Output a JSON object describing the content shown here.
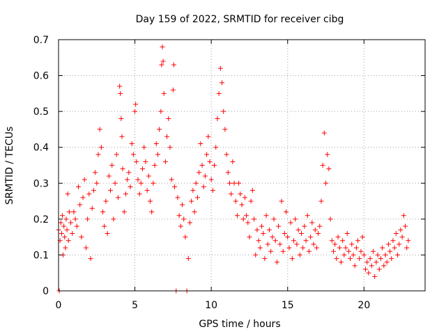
{
  "chart_data": {
    "type": "scatter",
    "title": "Day 159 of 2022, SRMTID for receiver cibg",
    "xlabel": "GPS time / hours",
    "ylabel": "SRMTID / TECUs",
    "xlim": [
      0,
      24
    ],
    "ylim": [
      0,
      0.7
    ],
    "xticks": [
      0,
      5,
      10,
      15,
      20
    ],
    "xtick_labels": [
      "0",
      "5",
      "10",
      "15",
      "20"
    ],
    "yticks": [
      0,
      0.1,
      0.2,
      0.3,
      0.4,
      0.5,
      0.6,
      0.7
    ],
    "ytick_labels": [
      "0",
      "0.1",
      "0.2",
      "0.3",
      "0.4",
      "0.5",
      "0.6",
      "0.7"
    ],
    "grid": true,
    "marker": "+",
    "color": "#ff0000",
    "series": [
      {
        "name": "SRMTID",
        "points": [
          [
            0.0,
            0.17
          ],
          [
            0.05,
            0.0
          ],
          [
            0.1,
            0.14
          ],
          [
            0.15,
            0.19
          ],
          [
            0.2,
            0.16
          ],
          [
            0.25,
            0.21
          ],
          [
            0.3,
            0.1
          ],
          [
            0.35,
            0.18
          ],
          [
            0.4,
            0.15
          ],
          [
            0.45,
            0.12
          ],
          [
            0.5,
            0.2
          ],
          [
            0.55,
            0.17
          ],
          [
            0.6,
            0.27
          ],
          [
            0.65,
            0.14
          ],
          [
            0.7,
            0.22
          ],
          [
            0.8,
            0.19
          ],
          [
            0.9,
            0.16
          ],
          [
            1.0,
            0.22
          ],
          [
            1.1,
            0.2
          ],
          [
            1.2,
            0.18
          ],
          [
            1.3,
            0.29
          ],
          [
            1.4,
            0.24
          ],
          [
            1.5,
            0.15
          ],
          [
            1.6,
            0.26
          ],
          [
            1.7,
            0.31
          ],
          [
            1.8,
            0.12
          ],
          [
            1.9,
            0.2
          ],
          [
            2.0,
            0.27
          ],
          [
            2.1,
            0.09
          ],
          [
            2.2,
            0.23
          ],
          [
            2.3,
            0.28
          ],
          [
            2.4,
            0.33
          ],
          [
            2.5,
            0.3
          ],
          [
            2.6,
            0.38
          ],
          [
            2.7,
            0.45
          ],
          [
            2.8,
            0.4
          ],
          [
            2.9,
            0.22
          ],
          [
            3.0,
            0.18
          ],
          [
            3.1,
            0.25
          ],
          [
            3.2,
            0.16
          ],
          [
            3.3,
            0.32
          ],
          [
            3.4,
            0.28
          ],
          [
            3.5,
            0.35
          ],
          [
            3.6,
            0.2
          ],
          [
            3.7,
            0.3
          ],
          [
            3.8,
            0.38
          ],
          [
            3.9,
            0.26
          ],
          [
            4.0,
            0.57
          ],
          [
            4.05,
            0.55
          ],
          [
            4.1,
            0.48
          ],
          [
            4.15,
            0.43
          ],
          [
            4.2,
            0.34
          ],
          [
            4.3,
            0.22
          ],
          [
            4.4,
            0.27
          ],
          [
            4.5,
            0.31
          ],
          [
            4.6,
            0.33
          ],
          [
            4.7,
            0.29
          ],
          [
            4.8,
            0.41
          ],
          [
            4.9,
            0.38
          ],
          [
            5.0,
            0.5
          ],
          [
            5.05,
            0.52
          ],
          [
            5.1,
            0.36
          ],
          [
            5.2,
            0.31
          ],
          [
            5.3,
            0.27
          ],
          [
            5.4,
            0.3
          ],
          [
            5.5,
            0.34
          ],
          [
            5.6,
            0.4
          ],
          [
            5.7,
            0.36
          ],
          [
            5.8,
            0.28
          ],
          [
            5.9,
            0.32
          ],
          [
            6.0,
            0.25
          ],
          [
            6.1,
            0.22
          ],
          [
            6.2,
            0.3
          ],
          [
            6.3,
            0.35
          ],
          [
            6.4,
            0.41
          ],
          [
            6.5,
            0.38
          ],
          [
            6.6,
            0.45
          ],
          [
            6.7,
            0.5
          ],
          [
            6.75,
            0.63
          ],
          [
            6.8,
            0.68
          ],
          [
            6.85,
            0.64
          ],
          [
            6.9,
            0.55
          ],
          [
            7.0,
            0.36
          ],
          [
            7.1,
            0.43
          ],
          [
            7.2,
            0.48
          ],
          [
            7.3,
            0.4
          ],
          [
            7.4,
            0.31
          ],
          [
            7.5,
            0.56
          ],
          [
            7.55,
            0.63
          ],
          [
            7.6,
            0.29
          ],
          [
            7.7,
            0.0
          ],
          [
            7.8,
            0.26
          ],
          [
            7.9,
            0.21
          ],
          [
            8.0,
            0.18
          ],
          [
            8.1,
            0.24
          ],
          [
            8.2,
            0.2
          ],
          [
            8.3,
            0.15
          ],
          [
            8.4,
            0.0
          ],
          [
            8.5,
            0.09
          ],
          [
            8.6,
            0.19
          ],
          [
            8.7,
            0.25
          ],
          [
            8.8,
            0.28
          ],
          [
            8.9,
            0.22
          ],
          [
            9.0,
            0.3
          ],
          [
            9.1,
            0.26
          ],
          [
            9.2,
            0.33
          ],
          [
            9.3,
            0.41
          ],
          [
            9.4,
            0.35
          ],
          [
            9.5,
            0.29
          ],
          [
            9.6,
            0.32
          ],
          [
            9.7,
            0.38
          ],
          [
            9.8,
            0.43
          ],
          [
            9.9,
            0.36
          ],
          [
            10.0,
            0.31
          ],
          [
            10.1,
            0.28
          ],
          [
            10.2,
            0.35
          ],
          [
            10.3,
            0.4
          ],
          [
            10.4,
            0.48
          ],
          [
            10.5,
            0.55
          ],
          [
            10.6,
            0.62
          ],
          [
            10.7,
            0.58
          ],
          [
            10.8,
            0.5
          ],
          [
            10.9,
            0.45
          ],
          [
            11.0,
            0.38
          ],
          [
            11.1,
            0.33
          ],
          [
            11.2,
            0.3
          ],
          [
            11.3,
            0.27
          ],
          [
            11.4,
            0.36
          ],
          [
            11.5,
            0.3
          ],
          [
            11.6,
            0.25
          ],
          [
            11.7,
            0.21
          ],
          [
            11.8,
            0.3
          ],
          [
            11.9,
            0.27
          ],
          [
            12.0,
            0.24
          ],
          [
            12.1,
            0.2
          ],
          [
            12.2,
            0.26
          ],
          [
            12.3,
            0.21
          ],
          [
            12.4,
            0.19
          ],
          [
            12.5,
            0.15
          ],
          [
            12.6,
            0.25
          ],
          [
            12.7,
            0.28
          ],
          [
            12.8,
            0.2
          ],
          [
            12.9,
            0.1
          ],
          [
            13.0,
            0.17
          ],
          [
            13.1,
            0.14
          ],
          [
            13.2,
            0.12
          ],
          [
            13.3,
            0.18
          ],
          [
            13.4,
            0.16
          ],
          [
            13.5,
            0.09
          ],
          [
            13.6,
            0.21
          ],
          [
            13.7,
            0.13
          ],
          [
            13.8,
            0.17
          ],
          [
            13.9,
            0.11
          ],
          [
            14.0,
            0.15
          ],
          [
            14.1,
            0.2
          ],
          [
            14.2,
            0.14
          ],
          [
            14.3,
            0.08
          ],
          [
            14.4,
            0.18
          ],
          [
            14.5,
            0.13
          ],
          [
            14.6,
            0.25
          ],
          [
            14.7,
            0.11
          ],
          [
            14.8,
            0.16
          ],
          [
            14.9,
            0.22
          ],
          [
            15.0,
            0.15
          ],
          [
            15.1,
            0.12
          ],
          [
            15.2,
            0.19
          ],
          [
            15.3,
            0.09
          ],
          [
            15.4,
            0.14
          ],
          [
            15.5,
            0.2
          ],
          [
            15.6,
            0.13
          ],
          [
            15.7,
            0.17
          ],
          [
            15.8,
            0.1
          ],
          [
            15.9,
            0.16
          ],
          [
            16.0,
            0.12
          ],
          [
            16.1,
            0.18
          ],
          [
            16.2,
            0.14
          ],
          [
            16.3,
            0.21
          ],
          [
            16.4,
            0.11
          ],
          [
            16.5,
            0.15
          ],
          [
            16.6,
            0.19
          ],
          [
            16.7,
            0.13
          ],
          [
            16.8,
            0.17
          ],
          [
            16.9,
            0.12
          ],
          [
            17.0,
            0.16
          ],
          [
            17.1,
            0.18
          ],
          [
            17.2,
            0.25
          ],
          [
            17.3,
            0.35
          ],
          [
            17.4,
            0.44
          ],
          [
            17.5,
            0.3
          ],
          [
            17.6,
            0.38
          ],
          [
            17.7,
            0.34
          ],
          [
            17.8,
            0.2
          ],
          [
            17.9,
            0.14
          ],
          [
            18.0,
            0.11
          ],
          [
            18.1,
            0.13
          ],
          [
            18.2,
            0.09
          ],
          [
            18.3,
            0.15
          ],
          [
            18.4,
            0.12
          ],
          [
            18.5,
            0.08
          ],
          [
            18.6,
            0.14
          ],
          [
            18.7,
            0.1
          ],
          [
            18.8,
            0.12
          ],
          [
            18.9,
            0.16
          ],
          [
            19.0,
            0.11
          ],
          [
            19.1,
            0.09
          ],
          [
            19.2,
            0.13
          ],
          [
            19.3,
            0.1
          ],
          [
            19.4,
            0.07
          ],
          [
            19.5,
            0.12
          ],
          [
            19.6,
            0.14
          ],
          [
            19.7,
            0.09
          ],
          [
            19.8,
            0.11
          ],
          [
            19.9,
            0.15
          ],
          [
            20.0,
            0.1
          ],
          [
            20.1,
            0.06
          ],
          [
            20.2,
            0.08
          ],
          [
            20.3,
            0.05
          ],
          [
            20.4,
            0.09
          ],
          [
            20.5,
            0.07
          ],
          [
            20.6,
            0.11
          ],
          [
            20.7,
            0.04
          ],
          [
            20.8,
            0.08
          ],
          [
            20.9,
            0.1
          ],
          [
            21.0,
            0.06
          ],
          [
            21.1,
            0.09
          ],
          [
            21.2,
            0.12
          ],
          [
            21.3,
            0.07
          ],
          [
            21.4,
            0.1
          ],
          [
            21.5,
            0.08
          ],
          [
            21.6,
            0.13
          ],
          [
            21.7,
            0.11
          ],
          [
            21.8,
            0.09
          ],
          [
            21.9,
            0.14
          ],
          [
            22.0,
            0.12
          ],
          [
            22.1,
            0.16
          ],
          [
            22.2,
            0.1
          ],
          [
            22.3,
            0.13
          ],
          [
            22.4,
            0.17
          ],
          [
            22.5,
            0.15
          ],
          [
            22.6,
            0.21
          ],
          [
            22.7,
            0.18
          ],
          [
            22.8,
            0.12
          ],
          [
            22.9,
            0.14
          ]
        ]
      }
    ]
  }
}
